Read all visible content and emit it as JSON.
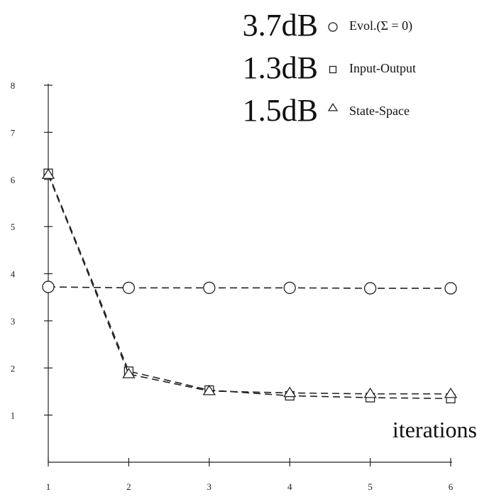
{
  "chart_data": {
    "type": "line",
    "x": [
      1,
      2,
      3,
      4,
      5,
      6
    ],
    "xlabel": "iterations",
    "ylabel": "",
    "xlim": [
      1,
      6
    ],
    "ylim": [
      0,
      8
    ],
    "x_ticks": [
      "1",
      "2",
      "3",
      "4",
      "5",
      "6"
    ],
    "y_ticks": [
      "1",
      "2",
      "3",
      "4",
      "5",
      "6",
      "7",
      "8"
    ],
    "grid": false,
    "legend_position": "top-right",
    "series": [
      {
        "name": "Evol.(Σ = 0)",
        "marker": "circle",
        "summary": "3.7dB",
        "values": [
          3.72,
          3.7,
          3.7,
          3.7,
          3.69,
          3.69
        ]
      },
      {
        "name": "Input-Output",
        "marker": "square",
        "summary": "1.3dB",
        "values": [
          6.13,
          1.93,
          1.53,
          1.41,
          1.37,
          1.35
        ]
      },
      {
        "name": "State-Space",
        "marker": "triangle",
        "summary": "1.5dB",
        "values": [
          6.1,
          1.87,
          1.51,
          1.47,
          1.45,
          1.45
        ]
      }
    ]
  }
}
